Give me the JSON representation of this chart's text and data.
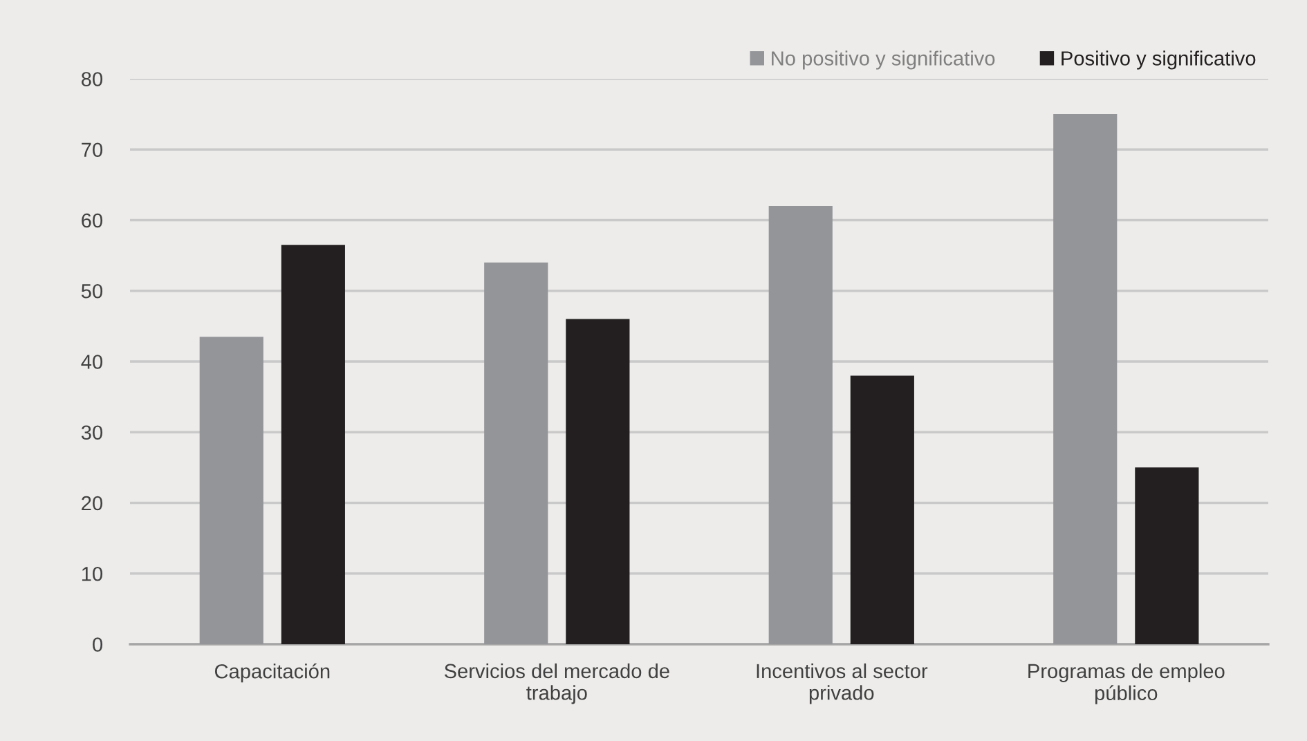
{
  "chart_data": {
    "type": "bar",
    "categories": [
      "Capacitación",
      "Servicios del mercado de\ntrabajo",
      "Incentivos al sector\nprivado",
      "Programas de empleo\npúblico"
    ],
    "series": [
      {
        "name": "No positivo y significativo",
        "color": "#939598",
        "values": [
          43.5,
          54,
          62,
          75
        ]
      },
      {
        "name": "Positivo y significativo",
        "color": "#231f20",
        "values": [
          56.5,
          46,
          38,
          25
        ]
      }
    ],
    "ylim": [
      0,
      80
    ],
    "yticks": [
      0,
      10,
      20,
      30,
      40,
      50,
      60,
      70,
      80
    ],
    "grid": "y",
    "legend": "top right"
  }
}
